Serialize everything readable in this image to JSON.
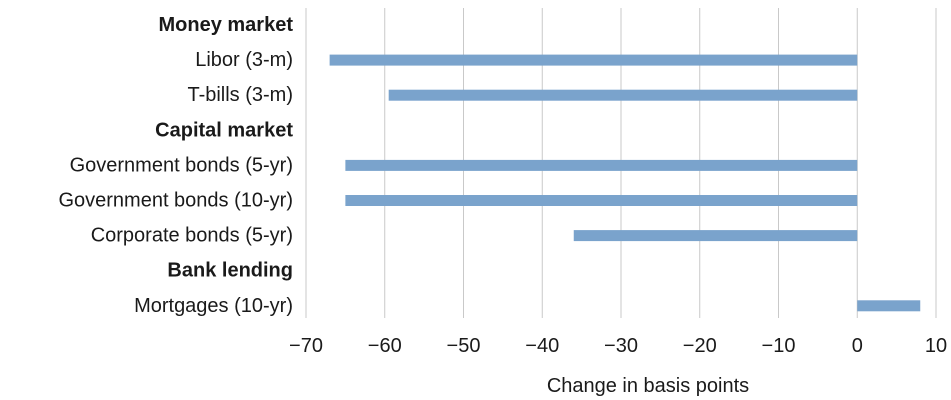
{
  "chart_data": {
    "type": "bar",
    "orientation": "horizontal",
    "title": "",
    "xlabel": "Change in basis points",
    "ylabel": "",
    "xlim": [
      -70,
      10
    ],
    "xticks": [
      -70,
      -60,
      -50,
      -40,
      -30,
      -20,
      -10,
      0,
      10
    ],
    "xtick_labels": [
      "−70",
      "−60",
      "−50",
      "−40",
      "−30",
      "−20",
      "−10",
      "0",
      "10"
    ],
    "grid": true,
    "bar_color": "#7aa3cc",
    "rows": [
      {
        "label": "Money market",
        "header": true,
        "value": null
      },
      {
        "label": "Libor (3-m)",
        "header": false,
        "value": -67
      },
      {
        "label": "T-bills (3-m)",
        "header": false,
        "value": -59.5
      },
      {
        "label": "Capital market",
        "header": true,
        "value": null
      },
      {
        "label": "Government bonds (5-yr)",
        "header": false,
        "value": -65
      },
      {
        "label": "Government bonds (10-yr)",
        "header": false,
        "value": -65
      },
      {
        "label": "Corporate bonds (5-yr)",
        "header": false,
        "value": -36
      },
      {
        "label": "Bank lending",
        "header": true,
        "value": null
      },
      {
        "label": "Mortgages (10-yr)",
        "header": false,
        "value": 8
      }
    ]
  }
}
